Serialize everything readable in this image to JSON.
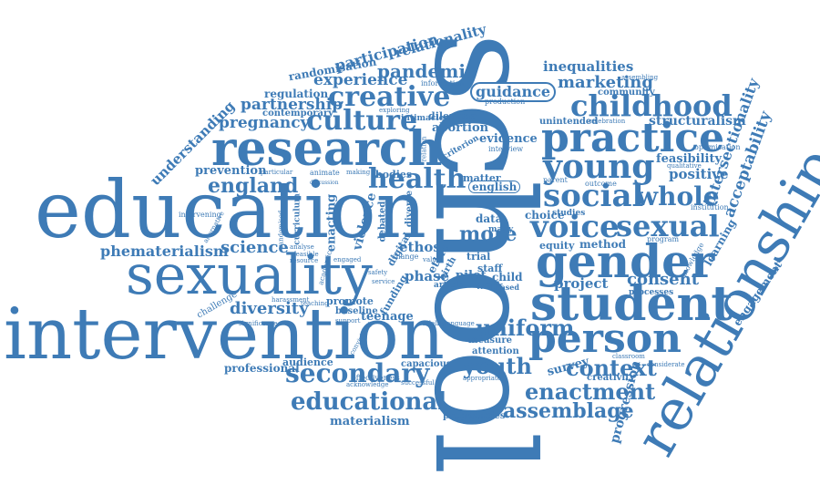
{
  "theme": {
    "word_color": "#3e7bb6",
    "background": "#ffffff"
  },
  "words": {
    "school": "school",
    "education": "education",
    "intervention": "intervention",
    "relationship": "relationship",
    "sexuality": "sexuality",
    "research": "research",
    "gender": "gender",
    "student": "student",
    "practice": "practice",
    "person": "person",
    "young": "young",
    "social": "social",
    "voice": "voice",
    "sexual": "sexual",
    "whole": "whole",
    "childhood": "childhood",
    "creative": "creative",
    "culture": "culture",
    "health": "health",
    "england": "england",
    "secondary": "secondary",
    "educational": "educational",
    "uniform": "uniform",
    "youth": "youth",
    "context": "context",
    "enactment": "enactment",
    "assemblage": "assemblage",
    "pandemic": "pandemic",
    "participation": "participation",
    "relationality": "relationality",
    "randomisation": "randomisation",
    "experience": "experience",
    "regulation": "regulation",
    "partnership": "partnership",
    "contemporary": "contemporary",
    "pregnancy": "pregnancy",
    "understanding": "understanding",
    "prevention": "prevention",
    "intervening": "intervening",
    "phematerialism": "phematerialism",
    "science": "science",
    "diversity": "diversity",
    "challenge": "challenge",
    "professional": "professional",
    "audience": "audience",
    "capacious": "capacious",
    "materialism": "materialism",
    "pregnancies": "pregnancies",
    "teenage": "teenage",
    "baseline": "baseline",
    "promote": "promote",
    "harassment": "harassment",
    "significance": "significance",
    "effectiveness": "effectiveness",
    "acknowledge": "acknowledge",
    "successful": "successful",
    "guidance": "guidance",
    "production": "production",
    "information": "information",
    "inequalities": "inequalities",
    "marketing": "marketing",
    "assembling": "assembling",
    "community": "community",
    "unintended": "unintended",
    "celebration": "celebration",
    "structuralism": "structuralism",
    "intersectionality": "intersectionality",
    "acceptability": "acceptability",
    "feasibility": "feasibility",
    "positive": "positive",
    "qualitative": "qualitative",
    "optimisation": "optimisation",
    "institution": "institution",
    "learning": "learning",
    "knowledge": "knowledge",
    "engagement": "engagement",
    "progression": "progression",
    "consent": "consent",
    "project": "project",
    "processes": "processes",
    "survey": "survey",
    "creativity": "creativity",
    "classroom": "classroom",
    "considerate": "considerate",
    "program": "program",
    "method": "method",
    "equity": "equity",
    "choice": "choice",
    "studies": "studies",
    "parent": "parent",
    "outcome": "outcome",
    "english": "english",
    "matter": "matter",
    "data": "data",
    "more": "more",
    "many": "many",
    "ethos": "ethos",
    "phase": "phase",
    "pilot": "pilot",
    "child": "child",
    "staff": "staff",
    "work": "work",
    "trial": "trial",
    "based": "based",
    "article": "article",
    "measure": "measure",
    "attention": "attention",
    "appropriate": "appropriate",
    "abortion": "abortion",
    "dilemma": "dilemma",
    "evidence": "evidence",
    "interview": "interview",
    "criterion": "criterion",
    "exploring": "exploring",
    "intimacies": "intimacies",
    "bodies": "bodies",
    "animate": "animate",
    "particular": "particular",
    "violence": "violence",
    "enacting": "enacting",
    "curriculum": "curriculum",
    "analyse": "analyse",
    "feasible": "feasible",
    "resource": "resource",
    "randomised": "randomised",
    "alternative": "alternative",
    "teaching": "teaching",
    "support": "support",
    "funding": "funding",
    "digital": "digital",
    "ethic": "ethic",
    "diverse": "diverse",
    "debated": "debated",
    "relation": "relation",
    "safety": "safety",
    "service": "service",
    "change": "change",
    "fidelity": "fidelity",
    "language": "language",
    "birth": "birth",
    "value": "value",
    "making": "making",
    "discussion": "discussion",
    "conviviality": "conviviality",
    "academic": "academic",
    "engaged": "engaged"
  }
}
